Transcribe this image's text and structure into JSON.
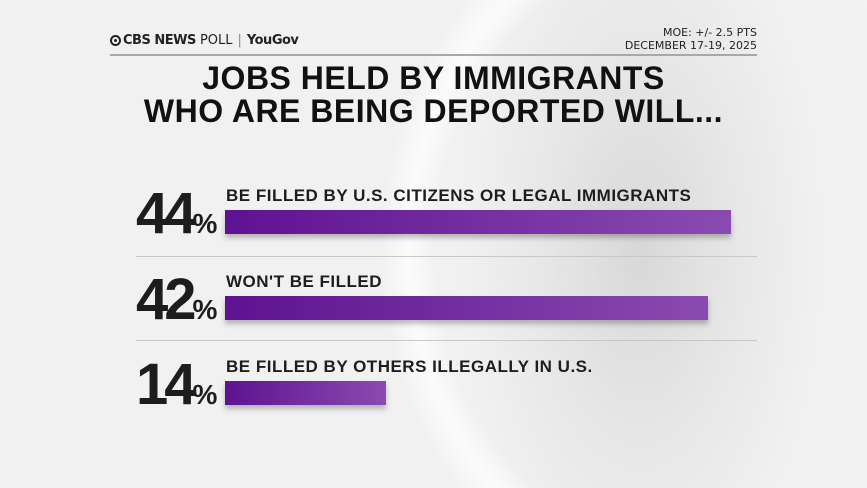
{
  "header": {
    "brand": "CBS NEWS",
    "brand_suffix": "POLL",
    "partner": "YouGov",
    "moe": "MOE: +/- 2.5 PTS",
    "dates": "DECEMBER 17-19, 2025"
  },
  "colors": {
    "bar_start": "#5e1290",
    "bar_end": "#8a4bb0",
    "text": "#1d1d1d"
  },
  "chart_data": {
    "type": "bar",
    "title": "JOBS HELD BY IMMIGRANTS WHO ARE BEING DEPORTED WILL...",
    "title_lines": [
      "JOBS HELD BY IMMIGRANTS",
      "WHO ARE BEING DEPORTED WILL..."
    ],
    "orientation": "horizontal",
    "categories": [
      "BE FILLED BY U.S. CITIZENS OR LEGAL IMMIGRANTS",
      "WON'T BE FILLED",
      "BE FILLED BY OTHERS ILLEGALLY IN U.S."
    ],
    "values": [
      44,
      42,
      14
    ],
    "value_labels": [
      "44",
      "42",
      "14"
    ],
    "unit": "%",
    "xlim": [
      0,
      44
    ]
  }
}
